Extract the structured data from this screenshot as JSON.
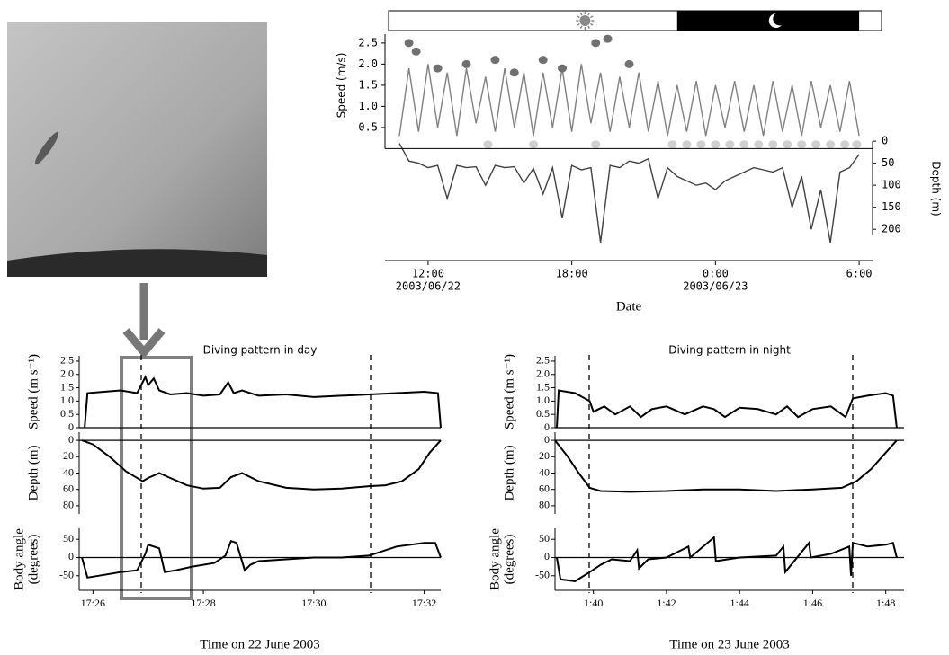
{
  "chart_data": [
    {
      "type": "line",
      "y_label": "Speed (m/s)",
      "y2_label": "Depth (m)",
      "x_label": "Date",
      "xlim": [
        10.2,
        30.56
      ],
      "xticks": [
        {
          "value": 12,
          "label": "12:00",
          "date": "2003/06/22"
        },
        {
          "value": 18,
          "label": "18:00"
        },
        {
          "value": 24,
          "label": "0:00",
          "date": "2003/06/23"
        },
        {
          "value": 30,
          "label": "6:00"
        }
      ],
      "ylim": [
        -2.65,
        2.71
      ],
      "yticks": [
        0.5,
        {
          "value": 1,
          "label": "1.0"
        },
        1.5,
        {
          "value": 2,
          "label": "2.0"
        },
        2.5
      ],
      "y2lim": [
        271,
        -243
      ],
      "y2ticks": [
        0,
        50,
        100,
        150,
        200
      ],
      "night": [
        22.4,
        30.0
      ],
      "series": [
        {
          "type": "line",
          "axis": "y2",
          "color": "#404040",
          "x": [
            10.8,
            11.2,
            11.6,
            12.0,
            12.4,
            12.8,
            13.2,
            13.6,
            14.0,
            14.4,
            14.8,
            15.2,
            15.6,
            16.0,
            16.4,
            16.8,
            17.2,
            17.6,
            18.0,
            18.4,
            18.8,
            19.2,
            19.6,
            20.0,
            20.4,
            20.8,
            21.2,
            21.6,
            22.0,
            22.4,
            22.8,
            23.2,
            23.6,
            24.0,
            24.4,
            24.8,
            25.2,
            25.6,
            26.0,
            26.4,
            26.8,
            27.2,
            27.6,
            28.0,
            28.4,
            28.8,
            29.2,
            29.6,
            30.0
          ],
          "values": [
            5,
            45,
            50,
            60,
            55,
            130,
            55,
            60,
            58,
            100,
            55,
            60,
            58,
            95,
            62,
            120,
            60,
            175,
            55,
            65,
            60,
            230,
            55,
            60,
            45,
            50,
            40,
            130,
            60,
            80,
            90,
            100,
            95,
            110,
            90,
            80,
            70,
            60,
            65,
            70,
            60,
            150,
            80,
            200,
            110,
            230,
            70,
            60,
            30
          ]
        },
        {
          "type": "line",
          "color": "#808080",
          "x": [
            10.8,
            11.2,
            11.6,
            12.0,
            12.4,
            12.8,
            13.2,
            13.6,
            14.0,
            14.4,
            14.8,
            15.2,
            15.6,
            16.0,
            16.4,
            16.8,
            17.2,
            17.6,
            18.0,
            18.4,
            18.8,
            19.2,
            19.6,
            20.0,
            20.4,
            20.8,
            21.2,
            21.6,
            22.0,
            22.4,
            22.8,
            23.2,
            23.6,
            24.0,
            24.4,
            24.8,
            25.2,
            25.6,
            26.0,
            26.4,
            26.8,
            27.2,
            27.6,
            28.0,
            28.4,
            28.8,
            29.2,
            29.6,
            30.0
          ],
          "values": [
            0.3,
            1.9,
            0.4,
            2.0,
            0.5,
            1.8,
            0.3,
            1.9,
            0.6,
            1.7,
            0.4,
            1.9,
            0.5,
            1.8,
            0.3,
            1.8,
            0.5,
            1.9,
            0.4,
            2.0,
            0.6,
            1.8,
            0.4,
            1.7,
            0.5,
            1.8,
            0.4,
            1.6,
            0.3,
            1.5,
            0.4,
            1.6,
            0.3,
            1.5,
            0.5,
            1.6,
            0.4,
            1.5,
            0.3,
            1.6,
            0.4,
            1.5,
            0.3,
            1.6,
            0.5,
            1.5,
            0.4,
            1.6,
            0.3
          ]
        },
        {
          "type": "scatter",
          "color": "#707070",
          "x": [
            11.2,
            11.5,
            12.4,
            13.6,
            14.8,
            15.6,
            16.8,
            17.6,
            19.0,
            19.5,
            20.4
          ],
          "values": [
            2.5,
            2.3,
            1.9,
            2.0,
            2.1,
            1.8,
            2.1,
            1.9,
            2.5,
            2.6,
            2.0
          ]
        },
        {
          "type": "scatter",
          "color": "#d0d0d0",
          "x": [
            14.5,
            16.4,
            19.0,
            22.2,
            22.8,
            23.4,
            24.0,
            24.6,
            25.2,
            25.8,
            26.4,
            27.0,
            27.6,
            28.2,
            28.8,
            29.4,
            29.9
          ],
          "values": [
            0.1,
            0.1,
            0.1,
            0.1,
            0.1,
            0.1,
            0.1,
            0.1,
            0.1,
            0.1,
            0.1,
            0.1,
            0.1,
            0.1,
            0.1,
            0.1,
            0.1
          ]
        }
      ]
    },
    {
      "type": "line",
      "title": "Diving pattern in day",
      "y_label": [
        "Speed (m s⁻¹)"
      ],
      "color": "#000000",
      "xlim": [
        1045.75,
        1052.3
      ],
      "ylim": [
        0,
        2.7
      ],
      "yticks": [
        0,
        0.5,
        {
          "value": 1,
          "label": "1.0"
        },
        1.5,
        {
          "value": 2,
          "label": "2.0"
        },
        2.5
      ],
      "x": [
        1045.85,
        1045.9,
        1046.2,
        1046.5,
        1046.8,
        1046.95,
        1047.0,
        1047.1,
        1047.2,
        1047.4,
        1047.7,
        1048.0,
        1048.3,
        1048.45,
        1048.55,
        1048.7,
        1049.0,
        1049.5,
        1050.0,
        1050.5,
        1051.0,
        1051.5,
        1052.0,
        1052.25,
        1052.3
      ],
      "values": [
        0,
        1.3,
        1.35,
        1.4,
        1.3,
        1.9,
        1.6,
        1.85,
        1.4,
        1.25,
        1.3,
        1.2,
        1.25,
        1.7,
        1.3,
        1.4,
        1.2,
        1.25,
        1.15,
        1.2,
        1.25,
        1.3,
        1.35,
        1.3,
        0
      ]
    },
    {
      "type": "line",
      "y_label": [
        "Depth (m)"
      ],
      "color": "#000000",
      "xlim": [
        1045.75,
        1052.3
      ],
      "ylim": [
        90,
        -10
      ],
      "yticks": [
        0,
        20,
        40,
        60,
        80
      ],
      "x": [
        1045.8,
        1046.0,
        1046.3,
        1046.6,
        1046.9,
        1047.0,
        1047.2,
        1047.4,
        1047.7,
        1048.0,
        1048.3,
        1048.5,
        1048.7,
        1049.0,
        1049.5,
        1050.0,
        1050.5,
        1051.0,
        1051.3,
        1051.6,
        1051.9,
        1052.1,
        1052.3
      ],
      "values": [
        0,
        5,
        20,
        38,
        50,
        46,
        40,
        46,
        55,
        59,
        58,
        45,
        40,
        50,
        58,
        60,
        59,
        56,
        55,
        50,
        35,
        15,
        0
      ]
    },
    {
      "type": "line",
      "y_label": [
        "Body angle",
        "(degrees)"
      ],
      "x_label": "Time on 22 June 2003",
      "color": "#000000",
      "xlim": [
        1045.75,
        1052.3
      ],
      "ylim": [
        -90,
        80
      ],
      "yticks": [
        -50,
        0,
        50
      ],
      "xticks": [
        {
          "value": 1046,
          "label": "17:26"
        },
        {
          "value": 1048,
          "label": "17:28"
        },
        {
          "value": 1050,
          "label": "17:30"
        },
        {
          "value": 1052,
          "label": "17:32"
        }
      ],
      "x": [
        1045.8,
        1045.9,
        1046.1,
        1046.5,
        1046.8,
        1046.95,
        1047.0,
        1047.2,
        1047.3,
        1047.5,
        1047.8,
        1048.2,
        1048.4,
        1048.5,
        1048.6,
        1048.75,
        1048.85,
        1049.0,
        1049.5,
        1050.0,
        1050.5,
        1051.0,
        1051.5,
        1052.0,
        1052.2,
        1052.3
      ],
      "values": [
        0,
        -55,
        -50,
        -40,
        -35,
        10,
        35,
        25,
        -40,
        -35,
        -25,
        -15,
        5,
        45,
        40,
        -35,
        -20,
        -10,
        -5,
        0,
        0,
        5,
        30,
        40,
        40,
        0
      ]
    },
    {
      "type": "line",
      "title": "Diving pattern in night",
      "y_label": [
        "Speed (m s⁻¹)"
      ],
      "color": "#000000",
      "xlim": [
        98.95,
        108.5
      ],
      "ylim": [
        0,
        2.7
      ],
      "yticks": [
        0,
        0.5,
        {
          "value": 1,
          "label": "1.0"
        },
        1.5,
        {
          "value": 2,
          "label": "2.0"
        },
        2.5
      ],
      "x": [
        99.0,
        99.05,
        99.5,
        99.9,
        100.0,
        100.3,
        100.6,
        101.0,
        101.3,
        101.6,
        102.0,
        102.5,
        103.0,
        103.3,
        103.6,
        104.0,
        104.5,
        105.0,
        105.3,
        105.6,
        106.0,
        106.5,
        106.9,
        107.1,
        107.5,
        108.0,
        108.2,
        108.3
      ],
      "values": [
        0,
        1.4,
        1.3,
        1.0,
        0.6,
        0.8,
        0.5,
        0.8,
        0.4,
        0.7,
        0.8,
        0.5,
        0.8,
        0.7,
        0.4,
        0.75,
        0.7,
        0.5,
        0.8,
        0.4,
        0.7,
        0.8,
        0.4,
        1.1,
        1.2,
        1.3,
        1.2,
        0
      ]
    },
    {
      "type": "line",
      "y_label": [
        "Depth (m)"
      ],
      "color": "#000000",
      "xlim": [
        98.95,
        108.5
      ],
      "ylim": [
        90,
        -10
      ],
      "yticks": [
        0,
        20,
        40,
        60,
        80
      ],
      "x": [
        98.95,
        99.3,
        99.6,
        99.9,
        100.2,
        101,
        102,
        103,
        104,
        105,
        106,
        106.8,
        107.2,
        107.6,
        108.0,
        108.3
      ],
      "values": [
        0,
        20,
        40,
        58,
        62,
        63,
        62,
        60,
        60,
        62,
        60,
        58,
        50,
        35,
        15,
        0
      ]
    },
    {
      "type": "line",
      "y_label": [
        "Body angle",
        "(degrees)"
      ],
      "x_label": "Time on 23 June 2003",
      "color": "#000000",
      "xlim": [
        98.95,
        108.5
      ],
      "ylim": [
        -90,
        80
      ],
      "yticks": [
        -50,
        0,
        50
      ],
      "xticks": [
        {
          "value": 100,
          "label": "1:40"
        },
        {
          "value": 102,
          "label": "1:42"
        },
        {
          "value": 104,
          "label": "1:44"
        },
        {
          "value": 106,
          "label": "1:46"
        },
        {
          "value": 108,
          "label": "1:48"
        }
      ],
      "x": [
        99.0,
        99.1,
        99.5,
        99.9,
        100.2,
        100.5,
        101.0,
        101.2,
        101.25,
        101.5,
        102.0,
        102.6,
        102.65,
        103.3,
        103.35,
        104.0,
        105.0,
        105.2,
        105.25,
        105.9,
        105.95,
        106.5,
        107.0,
        107.05,
        107.1,
        107.5,
        108.0,
        108.2,
        108.3
      ],
      "values": [
        0,
        -60,
        -65,
        -40,
        -20,
        -5,
        -10,
        20,
        -30,
        -5,
        0,
        30,
        0,
        55,
        -10,
        0,
        5,
        30,
        -40,
        40,
        0,
        10,
        30,
        -50,
        40,
        30,
        35,
        40,
        0
      ]
    }
  ]
}
